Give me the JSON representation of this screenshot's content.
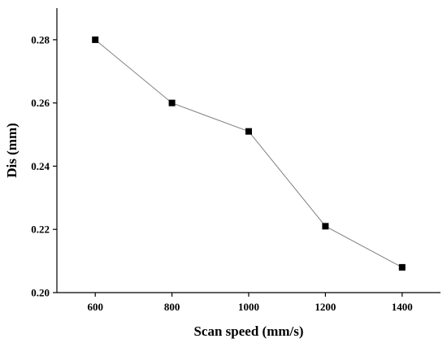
{
  "chart_data": {
    "type": "line",
    "title": "",
    "xlabel": "Scan speed (mm/s)",
    "ylabel": "Dis (mm)",
    "xlim": [
      500,
      1500
    ],
    "ylim": [
      0.2,
      0.29
    ],
    "x_ticks": [
      600,
      800,
      1000,
      1200,
      1400
    ],
    "y_ticks": [
      "0.20",
      "0.22",
      "0.24",
      "0.26",
      "0.28"
    ],
    "grid": false,
    "legend": "none",
    "marker": "square",
    "line_color": "#808080",
    "marker_color": "#000000",
    "series": [
      {
        "x": [
          600,
          800,
          1000,
          1200,
          1400
        ],
        "values": [
          0.28,
          0.26,
          0.251,
          0.221,
          0.208
        ]
      }
    ]
  }
}
